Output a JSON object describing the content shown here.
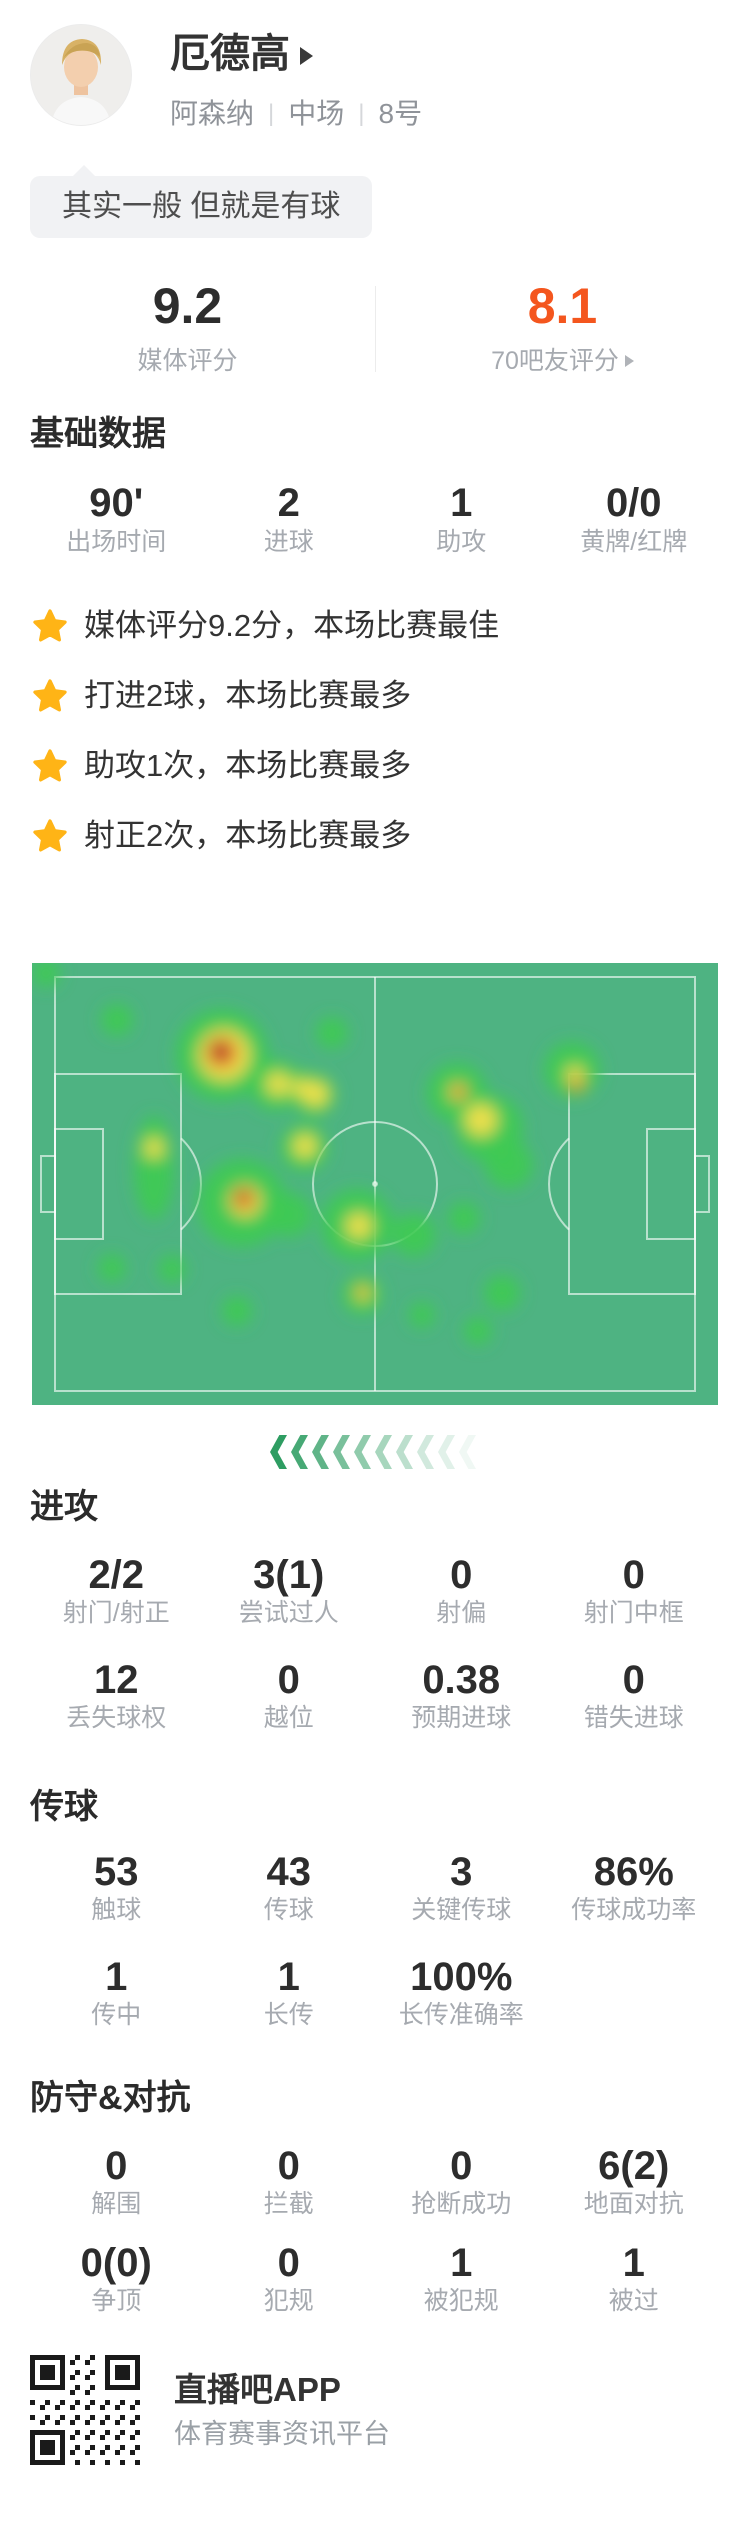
{
  "header": {
    "player_name": "厄德高",
    "team": "阿森纳",
    "position": "中场",
    "number": "8号"
  },
  "comment_bubble": {
    "text": "其实一般 但就是有球"
  },
  "ratings": {
    "media": {
      "value": "9.2",
      "label": "媒体评分"
    },
    "fans": {
      "value": "8.1",
      "label": "70吧友评分"
    }
  },
  "basic_section": {
    "title": "基础数据",
    "stats": [
      {
        "value": "90'",
        "label": "出场时间"
      },
      {
        "value": "2",
        "label": "进球"
      },
      {
        "value": "1",
        "label": "助攻"
      },
      {
        "value": "0/0",
        "label": "黄牌/红牌"
      }
    ]
  },
  "highlights": [
    "媒体评分9.2分，本场比赛最佳",
    "打进2球，本场比赛最多",
    "助攻1次，本场比赛最多",
    "射正2次，本场比赛最多"
  ],
  "attack_section": {
    "title": "进攻",
    "rows": [
      [
        {
          "value": "2/2",
          "label": "射门/射正"
        },
        {
          "value": "3(1)",
          "label": "尝试过人"
        },
        {
          "value": "0",
          "label": "射偏"
        },
        {
          "value": "0",
          "label": "射门中框"
        }
      ],
      [
        {
          "value": "12",
          "label": "丢失球权"
        },
        {
          "value": "0",
          "label": "越位"
        },
        {
          "value": "0.38",
          "label": "预期进球"
        },
        {
          "value": "0",
          "label": "错失进球"
        }
      ]
    ]
  },
  "passing_section": {
    "title": "传球",
    "rows": [
      [
        {
          "value": "53",
          "label": "触球"
        },
        {
          "value": "43",
          "label": "传球"
        },
        {
          "value": "3",
          "label": "关键传球"
        },
        {
          "value": "86%",
          "label": "传球成功率"
        }
      ],
      [
        {
          "value": "1",
          "label": "传中"
        },
        {
          "value": "1",
          "label": "长传"
        },
        {
          "value": "100%",
          "label": "长传准确率"
        }
      ]
    ]
  },
  "defense_section": {
    "title": "防守&对抗",
    "rows": [
      [
        {
          "value": "0",
          "label": "解围"
        },
        {
          "value": "0",
          "label": "拦截"
        },
        {
          "value": "0",
          "label": "抢断成功"
        },
        {
          "value": "6(2)",
          "label": "地面对抗"
        }
      ],
      [
        {
          "value": "0(0)",
          "label": "争顶"
        },
        {
          "value": "0",
          "label": "犯规"
        },
        {
          "value": "1",
          "label": "被犯规"
        },
        {
          "value": "1",
          "label": "被过"
        }
      ]
    ]
  },
  "footer": {
    "app_name": "直播吧APP",
    "tagline": "体育赛事资讯平台"
  },
  "colors": {
    "accent_orange": "#f4561e",
    "star_gold": "#ffb416",
    "pitch_green": "#4eb382",
    "chevron_green": "#2e9d62",
    "label_gray": "#a6aab0"
  },
  "heatmap": {
    "palette": {
      "g": {
        "fill": "#3fcb52",
        "op": 0.9
      },
      "y": {
        "fill": "#ffe24a",
        "op": 0.9
      },
      "o": {
        "fill": "#e8842f",
        "op": 0.85
      },
      "r": {
        "fill": "#b73b2c",
        "op": 0.95
      }
    },
    "blobs": [
      [
        14,
        10,
        14,
        "g"
      ],
      [
        85,
        57,
        16,
        "g"
      ],
      [
        300,
        70,
        16,
        "g"
      ],
      [
        269,
        125,
        18,
        "g"
      ],
      [
        190,
        92,
        46,
        "g"
      ],
      [
        243,
        122,
        26,
        "g"
      ],
      [
        282,
        132,
        22,
        "g"
      ],
      [
        272,
        185,
        24,
        "g"
      ],
      [
        210,
        240,
        44,
        "g"
      ],
      [
        258,
        252,
        22,
        "g"
      ],
      [
        122,
        205,
        20,
        "g",
        52
      ],
      [
        80,
        305,
        14,
        "g"
      ],
      [
        140,
        306,
        14,
        "g"
      ],
      [
        205,
        348,
        15,
        "g"
      ],
      [
        325,
        262,
        36,
        "g"
      ],
      [
        382,
        272,
        22,
        "g"
      ],
      [
        330,
        332,
        20,
        "g"
      ],
      [
        425,
        130,
        30,
        "g"
      ],
      [
        457,
        165,
        34,
        "g"
      ],
      [
        477,
        202,
        24,
        "g"
      ],
      [
        432,
        255,
        16,
        "g"
      ],
      [
        540,
        107,
        28,
        "g"
      ],
      [
        470,
        330,
        18,
        "g"
      ],
      [
        446,
        368,
        14,
        "g"
      ],
      [
        390,
        352,
        13,
        "g"
      ],
      [
        192,
        92,
        26,
        "y"
      ],
      [
        246,
        121,
        12,
        "y"
      ],
      [
        284,
        131,
        13,
        "y"
      ],
      [
        273,
        183,
        12,
        "y"
      ],
      [
        213,
        238,
        16,
        "y"
      ],
      [
        122,
        185,
        10,
        "y"
      ],
      [
        327,
        263,
        13,
        "y"
      ],
      [
        449,
        157,
        16,
        "y"
      ],
      [
        426,
        129,
        9,
        "y"
      ],
      [
        331,
        330,
        8,
        "y"
      ],
      [
        543,
        112,
        9,
        "y"
      ],
      [
        269,
        125,
        9,
        "y"
      ],
      [
        190,
        90,
        16,
        "o"
      ],
      [
        212,
        236,
        11,
        "o"
      ],
      [
        427,
        129,
        7,
        "o"
      ],
      [
        330,
        329,
        5,
        "o"
      ],
      [
        545,
        122,
        7,
        "o"
      ],
      [
        188,
        88,
        11,
        "r"
      ],
      [
        211,
        234,
        7,
        "r"
      ]
    ]
  }
}
